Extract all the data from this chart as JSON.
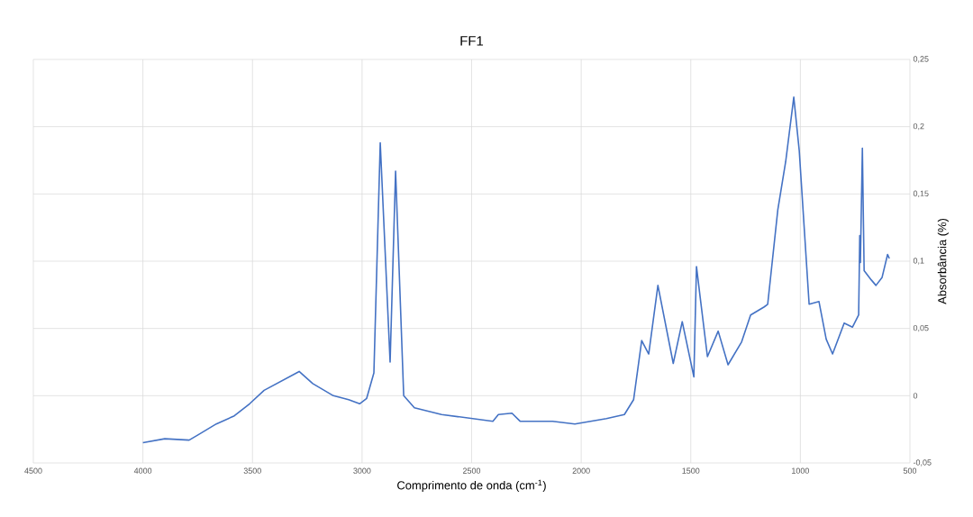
{
  "chart_data": {
    "type": "line",
    "title": "FF1",
    "xlabel": "Comprimento de onda (cm$^{-1}$)",
    "ylabel": "Absorbância (%)",
    "x": [
      4000,
      3900,
      3789,
      3747,
      3665,
      3583,
      3513,
      3447,
      3287,
      3225,
      3131,
      3061,
      3011,
      2979,
      2946,
      2917,
      2872,
      2847,
      2810,
      2761,
      2637,
      2403,
      2378,
      2316,
      2279,
      2131,
      2029,
      1885,
      1803,
      1761,
      1724,
      1692,
      1650,
      1580,
      1539,
      1486,
      1474,
      1457,
      1424,
      1375,
      1330,
      1268,
      1227,
      1165,
      1149,
      1103,
      1067,
      1030,
      1005,
      960,
      915,
      882,
      853,
      800,
      762,
      734,
      729,
      726,
      717,
      709,
      676,
      655,
      627,
      602,
      594
    ],
    "series": [
      {
        "color": "#4472c4",
        "values": [
          -0.035,
          -0.032,
          -0.033,
          -0.029,
          -0.021,
          -0.015,
          -0.006,
          0.004,
          0.018,
          0.009,
          0.0,
          -0.003,
          -0.006,
          -0.002,
          0.017,
          0.188,
          0.025,
          0.167,
          0.0,
          -0.009,
          -0.014,
          -0.019,
          -0.014,
          -0.013,
          -0.019,
          -0.019,
          -0.021,
          -0.017,
          -0.014,
          -0.003,
          0.041,
          0.031,
          0.082,
          0.024,
          0.055,
          0.014,
          0.096,
          0.073,
          0.029,
          0.048,
          0.023,
          0.04,
          0.06,
          0.066,
          0.068,
          0.138,
          0.174,
          0.222,
          0.182,
          0.068,
          0.07,
          0.042,
          0.031,
          0.054,
          0.051,
          0.06,
          0.119,
          0.099,
          0.184,
          0.093,
          0.086,
          0.082,
          0.088,
          0.105,
          0.102
        ]
      }
    ],
    "xlim": [
      4500,
      500
    ],
    "xticks": [
      4500,
      4000,
      3500,
      3000,
      2500,
      2000,
      1500,
      1000,
      500
    ],
    "ylim": [
      -0.05,
      0.25
    ],
    "yticks": [
      {
        "value": -0.05,
        "label": "-0,05"
      },
      {
        "value": 0,
        "label": "0"
      },
      {
        "value": 0.05,
        "label": "0,05"
      },
      {
        "value": 0.1,
        "label": "0,1"
      },
      {
        "value": 0.15,
        "label": "0,15"
      },
      {
        "value": 0.2,
        "label": "0,2"
      },
      {
        "value": 0.25,
        "label": "0,25"
      }
    ],
    "grid": true,
    "marker": "none",
    "line_style": "solid"
  }
}
